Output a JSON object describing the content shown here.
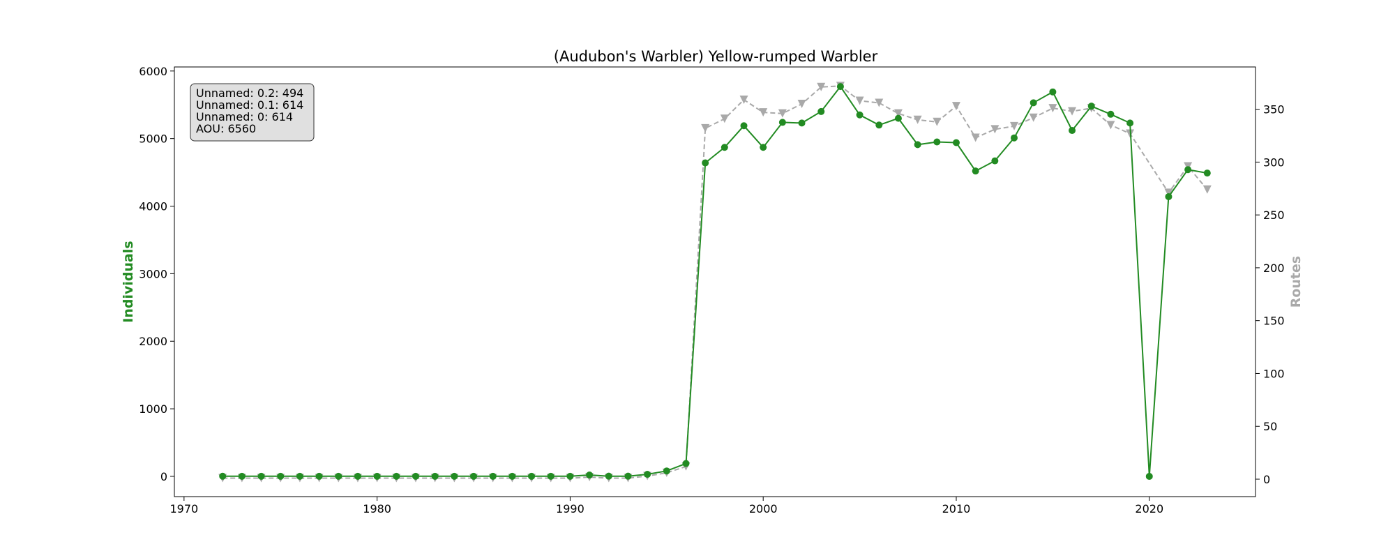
{
  "chart_data": {
    "type": "line",
    "title": "(Audubon's Warbler) Yellow-rumped Warbler",
    "xlabel": "",
    "ylabel_left": "Individuals",
    "ylabel_right": "Routes",
    "xlim": [
      1969.5,
      2025.5
    ],
    "ylim_left": [
      -300,
      6060
    ],
    "ylim_right": [
      -16.5,
      390
    ],
    "x_ticks": [
      1970,
      1980,
      1990,
      2000,
      2010,
      2020
    ],
    "y_left_ticks": [
      0,
      1000,
      2000,
      3000,
      4000,
      5000,
      6000
    ],
    "y_right_ticks": [
      0,
      50,
      100,
      150,
      200,
      250,
      300,
      350
    ],
    "grid": false,
    "x": [
      1972,
      1973,
      1974,
      1975,
      1976,
      1977,
      1978,
      1979,
      1980,
      1981,
      1982,
      1983,
      1984,
      1985,
      1986,
      1987,
      1988,
      1989,
      1990,
      1991,
      1992,
      1993,
      1994,
      1995,
      1996,
      1997,
      1998,
      1999,
      2000,
      2001,
      2002,
      2003,
      2004,
      2005,
      2006,
      2007,
      2008,
      2009,
      2010,
      2011,
      2012,
      2013,
      2014,
      2015,
      2016,
      2017,
      2018,
      2019,
      2020,
      2021,
      2022,
      2023
    ],
    "series": [
      {
        "axis": "left",
        "color": "#228B22",
        "marker": "circle",
        "linestyle": "solid",
        "values": [
          2,
          1,
          1,
          1,
          1,
          1,
          1,
          1,
          1,
          1,
          1,
          1,
          1,
          1,
          1,
          1,
          1,
          1,
          1,
          20,
          3,
          3,
          30,
          80,
          190,
          4640,
          4870,
          5190,
          4870,
          5240,
          5230,
          5400,
          5770,
          5350,
          5200,
          5300,
          4910,
          4950,
          4940,
          4520,
          4670,
          5010,
          5530,
          5690,
          5120,
          5480,
          5360,
          5230,
          0,
          4140,
          4540,
          4490
        ]
      },
      {
        "axis": "right",
        "color": "#A9A9A9",
        "marker": "triangle-down",
        "linestyle": "dashed",
        "values": [
          1,
          1,
          1,
          1,
          1,
          1,
          1,
          1,
          1,
          1,
          1,
          1,
          1,
          1,
          1,
          1,
          1,
          1,
          1,
          2,
          1,
          1,
          3,
          6,
          12,
          332,
          341,
          359,
          347,
          346,
          355,
          371,
          372,
          358,
          356,
          346,
          340,
          338,
          353,
          323,
          331,
          334,
          342,
          351,
          348,
          351,
          335,
          327,
          null,
          271,
          296,
          274
        ]
      }
    ],
    "legend_box": {
      "placement": "top-left",
      "lines": [
        "Unnamed: 0.2: 494",
        "Unnamed: 0.1: 614",
        "Unnamed: 0: 614",
        "AOU: 6560"
      ]
    }
  }
}
